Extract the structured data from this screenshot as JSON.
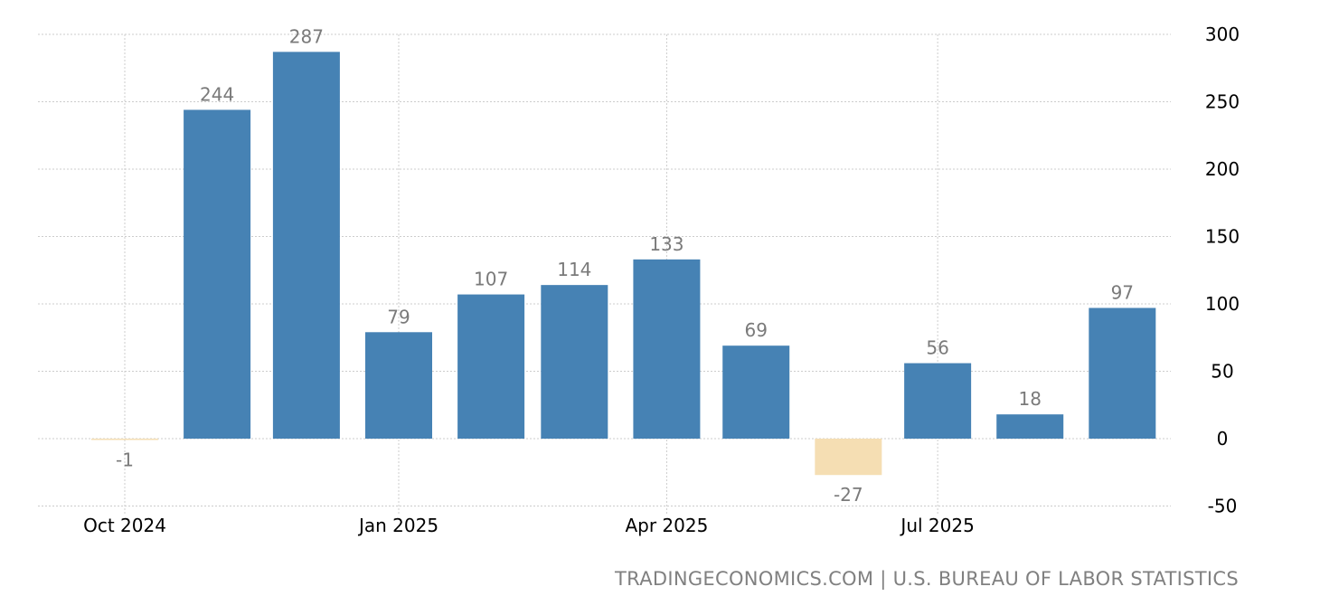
{
  "chart_data": {
    "type": "bar",
    "categories": [
      "2024-10",
      "2024-11",
      "2024-12",
      "2025-01",
      "2025-02",
      "2025-03",
      "2025-04",
      "2025-05",
      "2025-06",
      "2025-07",
      "2025-08",
      "2025-09"
    ],
    "values": [
      -1,
      244,
      287,
      79,
      107,
      114,
      133,
      69,
      -27,
      56,
      18,
      97
    ],
    "x_ticks": [
      {
        "date": "2024-10",
        "label": "Oct 2024"
      },
      {
        "date": "2025-01",
        "label": "Jan 2025"
      },
      {
        "date": "2025-04",
        "label": "Apr 2025"
      },
      {
        "date": "2025-07",
        "label": "Jul 2025"
      }
    ],
    "y_ticks": [
      300,
      250,
      200,
      150,
      100,
      50,
      0,
      -50
    ],
    "ylim": [
      -50,
      300
    ],
    "y_axis_side": "right",
    "grid": true,
    "data_labels": true,
    "title": "",
    "xlabel": "",
    "ylabel": "",
    "colors": {
      "positive": "#4682B4",
      "negative": "#F5DEB3",
      "data_label": "#7a7a7a",
      "grid": "#cccccc"
    }
  },
  "source": "TRADINGECONOMICS.COM | U.S. BUREAU OF LABOR STATISTICS"
}
